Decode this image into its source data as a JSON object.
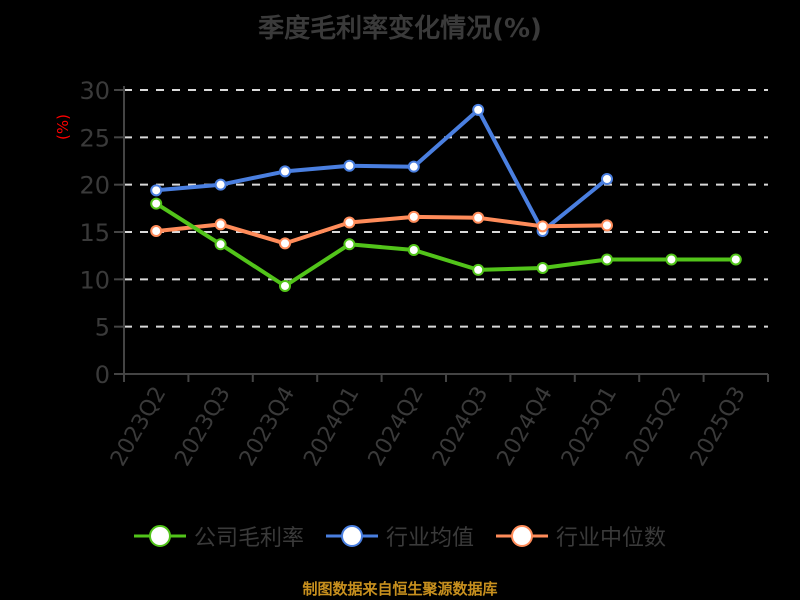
{
  "title": "季度毛利率变化情况(%)",
  "footer": "制图数据来自恒生聚源数据库",
  "colors": {
    "background": "#000000",
    "text": "#3a3a3a",
    "grid": "#d9d9d9",
    "axis": "#444444",
    "unit": "#ff0000",
    "footer": "#c8901e"
  },
  "legend": [
    {
      "name": "公司毛利率",
      "color": "#52c41a"
    },
    {
      "name": "行业均值",
      "color": "#4a7fe0"
    },
    {
      "name": "行业中位数",
      "color": "#ff8c5a"
    }
  ],
  "chart_data": {
    "type": "line",
    "title": "季度毛利率变化情况(%)",
    "xlabel": "",
    "ylabel": "(%)",
    "ylim": [
      0,
      30
    ],
    "yticks": [
      0,
      5,
      10,
      15,
      20,
      25,
      30
    ],
    "grid": true,
    "legend_position": "bottom",
    "categories": [
      "2023Q2",
      "2023Q3",
      "2023Q4",
      "2024Q1",
      "2024Q2",
      "2024Q3",
      "2024Q4",
      "2025Q1",
      "2025Q2",
      "2025Q3"
    ],
    "series": [
      {
        "name": "公司毛利率",
        "color": "#52c41a",
        "values": [
          18.0,
          13.7,
          9.3,
          13.7,
          13.1,
          11.0,
          11.2,
          12.1,
          12.1,
          12.1
        ]
      },
      {
        "name": "行业均值",
        "color": "#4a7fe0",
        "values": [
          19.4,
          20.0,
          21.4,
          22.0,
          21.9,
          27.9,
          15.1,
          20.6,
          null,
          null
        ]
      },
      {
        "name": "行业中位数",
        "color": "#ff8c5a",
        "values": [
          15.1,
          15.8,
          13.8,
          16.0,
          16.6,
          16.5,
          15.6,
          15.7,
          null,
          null
        ]
      }
    ],
    "source": "制图数据来自恒生聚源数据库"
  }
}
